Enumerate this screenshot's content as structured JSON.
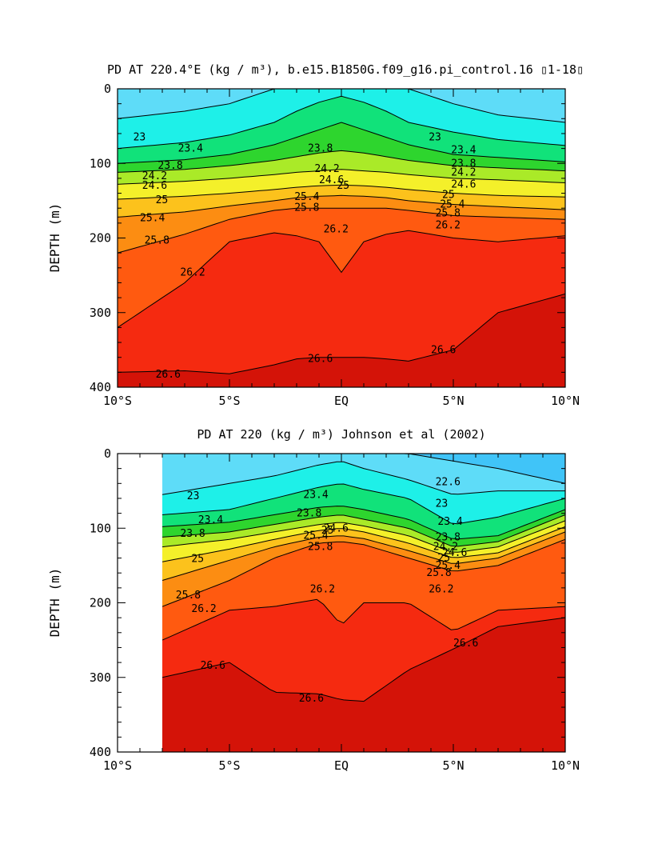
{
  "chart_data": [
    {
      "type": "contour",
      "title": "PD AT 220.4°E (kg / m³), b.e15.B1850G.f09_g16.pi_control.16 ▯1-18▯",
      "ylabel": "DEPTH (m)",
      "xticks": [
        "10°S",
        "5°S",
        "EQ",
        "5°N",
        "10°N"
      ],
      "yticks": [
        "0",
        "100",
        "200",
        "300",
        "400"
      ],
      "xlim": [
        -10,
        10
      ],
      "ylim": [
        400,
        0
      ],
      "data_x_start": -10,
      "contour_levels": [
        21.0,
        21.4,
        21.8,
        22.2,
        22.6,
        23.0,
        23.4,
        23.8,
        24.2,
        24.6,
        25.0,
        25.4,
        25.8,
        26.2,
        26.6
      ],
      "isopycnals": [
        {
          "level": 23.0,
          "x": [
            -10,
            -7,
            -5,
            -3,
            -2,
            -1,
            0,
            1,
            2,
            3,
            5,
            7,
            10
          ],
          "depth": [
            40,
            30,
            20,
            0,
            0,
            0,
            0,
            0,
            0,
            0,
            20,
            35,
            45
          ]
        },
        {
          "level": 23.4,
          "x": [
            -10,
            -7,
            -5,
            -3,
            -2,
            -1,
            0,
            1,
            2,
            3,
            5,
            7,
            10
          ],
          "depth": [
            80,
            72,
            62,
            45,
            30,
            18,
            10,
            18,
            30,
            45,
            58,
            68,
            76
          ]
        },
        {
          "level": 23.8,
          "x": [
            -10,
            -7,
            -5,
            -3,
            -2,
            -1,
            0,
            1,
            2,
            3,
            5,
            7,
            10
          ],
          "depth": [
            100,
            95,
            88,
            75,
            65,
            55,
            45,
            55,
            65,
            75,
            88,
            92,
            98
          ]
        },
        {
          "level": 24.2,
          "x": [
            -10,
            -7,
            -5,
            -3,
            -2,
            -1,
            0,
            1,
            2,
            3,
            5,
            7,
            10
          ],
          "depth": [
            112,
            108,
            103,
            96,
            91,
            86,
            83,
            86,
            91,
            96,
            103,
            106,
            110
          ]
        },
        {
          "level": 24.6,
          "x": [
            -10,
            -7,
            -5,
            -3,
            -2,
            -1,
            0,
            1,
            2,
            3,
            5,
            7,
            10
          ],
          "depth": [
            128,
            124,
            120,
            115,
            112,
            110,
            108,
            110,
            112,
            115,
            120,
            122,
            126
          ]
        },
        {
          "level": 25.0,
          "x": [
            -10,
            -7,
            -5,
            -3,
            -2,
            -1,
            0,
            1,
            2,
            3,
            5,
            7,
            10
          ],
          "depth": [
            148,
            144,
            140,
            135,
            132,
            130,
            129,
            130,
            132,
            135,
            140,
            143,
            145
          ]
        },
        {
          "level": 25.4,
          "x": [
            -10,
            -7,
            -5,
            -3,
            -2,
            -1,
            0,
            1,
            2,
            3,
            5,
            7,
            10
          ],
          "depth": [
            172,
            165,
            157,
            150,
            146,
            144,
            143,
            144,
            146,
            150,
            155,
            158,
            162
          ]
        },
        {
          "level": 25.8,
          "x": [
            -10,
            -7,
            -5,
            -3,
            -2,
            -1,
            0,
            1,
            2,
            3,
            5,
            7,
            10
          ],
          "depth": [
            220,
            195,
            175,
            163,
            160,
            160,
            160,
            160,
            160,
            163,
            170,
            172,
            175
          ]
        },
        {
          "level": 26.2,
          "x": [
            -10,
            -7,
            -5,
            -3,
            -2,
            -1,
            0,
            1,
            2,
            3,
            5,
            7,
            10
          ],
          "depth": [
            320,
            260,
            205,
            193,
            197,
            205,
            246,
            205,
            195,
            190,
            200,
            205,
            197
          ]
        },
        {
          "level": 26.6,
          "x": [
            -10,
            -7,
            -5,
            -3,
            -2,
            -1,
            0,
            1,
            2,
            3,
            5,
            7,
            10
          ],
          "depth": [
            380,
            378,
            382,
            370,
            362,
            360,
            360,
            360,
            362,
            365,
            350,
            300,
            275
          ]
        }
      ],
      "contour_labels": [
        {
          "text": "23",
          "x": -9.3,
          "y": 65
        },
        {
          "text": "23.4",
          "x": -7.3,
          "y": 80
        },
        {
          "text": "23.8",
          "x": -8.2,
          "y": 103
        },
        {
          "text": "24.2",
          "x": -8.9,
          "y": 117
        },
        {
          "text": "24.6",
          "x": -8.9,
          "y": 130
        },
        {
          "text": "25",
          "x": -8.3,
          "y": 149
        },
        {
          "text": "25.4",
          "x": -9.0,
          "y": 173
        },
        {
          "text": "25.8",
          "x": -8.8,
          "y": 203
        },
        {
          "text": "26.2",
          "x": -7.2,
          "y": 246
        },
        {
          "text": "26.6",
          "x": -8.3,
          "y": 383
        },
        {
          "text": "23.8",
          "x": -1.5,
          "y": 80
        },
        {
          "text": "24.2",
          "x": -1.2,
          "y": 107
        },
        {
          "text": "24.6",
          "x": -1.0,
          "y": 122
        },
        {
          "text": "25",
          "x": -0.2,
          "y": 130
        },
        {
          "text": "25.4",
          "x": -2.1,
          "y": 145
        },
        {
          "text": "25.8",
          "x": -2.1,
          "y": 159
        },
        {
          "text": "26.2",
          "x": -0.8,
          "y": 188
        },
        {
          "text": "26.6",
          "x": -1.5,
          "y": 362
        },
        {
          "text": "23",
          "x": 3.9,
          "y": 65
        },
        {
          "text": "23.4",
          "x": 4.9,
          "y": 82
        },
        {
          "text": "23.8",
          "x": 4.9,
          "y": 100
        },
        {
          "text": "24.2",
          "x": 4.9,
          "y": 112
        },
        {
          "text": "24.6",
          "x": 4.9,
          "y": 128
        },
        {
          "text": "25",
          "x": 4.5,
          "y": 142
        },
        {
          "text": "25.4",
          "x": 4.4,
          "y": 155
        },
        {
          "text": "25.8",
          "x": 4.2,
          "y": 167
        },
        {
          "text": "26.2",
          "x": 4.2,
          "y": 183
        },
        {
          "text": "26.6",
          "x": 4.0,
          "y": 350
        }
      ]
    },
    {
      "type": "contour",
      "title": "PD AT 220 (kg / m³) Johnson et al (2002)",
      "ylabel": "DEPTH (m)",
      "xticks": [
        "10°S",
        "5°S",
        "EQ",
        "5°N",
        "10°N"
      ],
      "yticks": [
        "0",
        "100",
        "200",
        "300",
        "400"
      ],
      "xlim": [
        -10,
        10
      ],
      "ylim": [
        400,
        0
      ],
      "data_x_start": -8,
      "contour_levels": [
        21.0,
        21.4,
        21.8,
        22.2,
        22.6,
        23.0,
        23.4,
        23.8,
        24.2,
        24.6,
        25.0,
        25.4,
        25.8,
        26.2,
        26.6
      ],
      "isopycnals": [
        {
          "level": 22.6,
          "x": [
            -8,
            -5,
            -3,
            -1,
            0,
            1,
            3,
            5,
            7,
            10
          ],
          "depth": [
            0,
            0,
            0,
            0,
            0,
            0,
            0,
            10,
            20,
            40
          ]
        },
        {
          "level": 23.0,
          "x": [
            -8,
            -5,
            -3,
            -1,
            0,
            1,
            3,
            5,
            7,
            10
          ],
          "depth": [
            55,
            40,
            30,
            15,
            10,
            20,
            35,
            55,
            50,
            50
          ]
        },
        {
          "level": 23.4,
          "x": [
            -8,
            -5,
            -3,
            -1,
            0,
            1,
            3,
            5,
            7,
            10
          ],
          "depth": [
            82,
            75,
            60,
            45,
            40,
            48,
            60,
            95,
            85,
            60
          ]
        },
        {
          "level": 23.8,
          "x": [
            -8,
            -5,
            -3,
            -1,
            0,
            1,
            3,
            5,
            7,
            10
          ],
          "depth": [
            98,
            92,
            82,
            72,
            70,
            75,
            88,
            115,
            110,
            75
          ]
        },
        {
          "level": 24.2,
          "x": [
            -8,
            -5,
            -3,
            -1,
            0,
            1,
            3,
            5,
            7,
            10
          ],
          "depth": [
            112,
            105,
            95,
            85,
            82,
            88,
            100,
            125,
            118,
            82
          ]
        },
        {
          "level": 24.6,
          "x": [
            -8,
            -5,
            -3,
            -1,
            0,
            1,
            3,
            5,
            7,
            10
          ],
          "depth": [
            125,
            115,
            105,
            95,
            92,
            97,
            110,
            133,
            125,
            90
          ]
        },
        {
          "level": 25.0,
          "x": [
            -8,
            -5,
            -3,
            -1,
            0,
            1,
            3,
            5,
            7,
            10
          ],
          "depth": [
            145,
            128,
            115,
            103,
            100,
            105,
            120,
            140,
            133,
            98
          ]
        },
        {
          "level": 25.4,
          "x": [
            -8,
            -5,
            -3,
            -1,
            0,
            1,
            3,
            5,
            7,
            10
          ],
          "depth": [
            170,
            143,
            125,
            112,
            110,
            114,
            130,
            148,
            140,
            105
          ]
        },
        {
          "level": 25.8,
          "x": [
            -8,
            -5,
            -3,
            -1,
            0,
            1,
            3,
            5,
            7,
            10
          ],
          "depth": [
            205,
            170,
            140,
            120,
            118,
            122,
            140,
            158,
            150,
            115
          ]
        },
        {
          "level": 26.2,
          "x": [
            -8,
            -5,
            -3,
            -1,
            0,
            1,
            3,
            5,
            7,
            10
          ],
          "depth": [
            250,
            210,
            205,
            195,
            230,
            200,
            200,
            238,
            210,
            205
          ]
        },
        {
          "level": 26.6,
          "x": [
            -8,
            -5,
            -3,
            -1,
            0,
            1,
            3,
            5,
            7,
            10
          ],
          "depth": [
            300,
            280,
            320,
            322,
            330,
            332,
            290,
            262,
            232,
            220
          ]
        }
      ],
      "contour_labels": [
        {
          "text": "23",
          "x": -6.9,
          "y": 57
        },
        {
          "text": "23.4",
          "x": -6.4,
          "y": 89
        },
        {
          "text": "23.8",
          "x": -7.2,
          "y": 107
        },
        {
          "text": "25",
          "x": -6.7,
          "y": 141
        },
        {
          "text": "25.8",
          "x": -7.4,
          "y": 190
        },
        {
          "text": "26.2",
          "x": -6.7,
          "y": 208
        },
        {
          "text": "26.6",
          "x": -6.3,
          "y": 284
        },
        {
          "text": "23.4",
          "x": -1.7,
          "y": 55
        },
        {
          "text": "23.8",
          "x": -2.0,
          "y": 80
        },
        {
          "text": "24.6",
          "x": -0.8,
          "y": 100
        },
        {
          "text": "25",
          "x": -0.9,
          "y": 103
        },
        {
          "text": "25.4",
          "x": -1.7,
          "y": 110
        },
        {
          "text": "25.8",
          "x": -1.5,
          "y": 125
        },
        {
          "text": "26.2",
          "x": -1.4,
          "y": 182
        },
        {
          "text": "26.6",
          "x": -1.9,
          "y": 328
        },
        {
          "text": "22.6",
          "x": 4.2,
          "y": 38
        },
        {
          "text": "23",
          "x": 4.2,
          "y": 67
        },
        {
          "text": "23.4",
          "x": 4.3,
          "y": 91
        },
        {
          "text": "23.8",
          "x": 4.2,
          "y": 112
        },
        {
          "text": "24.2",
          "x": 4.1,
          "y": 125
        },
        {
          "text": "24.6",
          "x": 4.5,
          "y": 133
        },
        {
          "text": "25",
          "x": 4.3,
          "y": 140
        },
        {
          "text": "25.4",
          "x": 4.2,
          "y": 150
        },
        {
          "text": "25.8",
          "x": 3.8,
          "y": 160
        },
        {
          "text": "26.2",
          "x": 3.9,
          "y": 182
        },
        {
          "text": "26.6",
          "x": 5.0,
          "y": 254
        }
      ]
    }
  ],
  "colors": {
    "fill_levels": [
      "#1010ee",
      "#0d3cf0",
      "#1c6ef8",
      "#2ea4fb",
      "#40c4f8",
      "#5edcf8",
      "#1ef0e8",
      "#11e27a",
      "#2ed52e",
      "#aaea28",
      "#f4f02a",
      "#fcc21c",
      "#fc8d12",
      "#ff5a10",
      "#f52a10",
      "#d41308"
    ],
    "top_surface_level": [
      "#e8e8ff",
      "#d23ed8",
      "#8c1bf0"
    ],
    "missing": "#ffffff"
  }
}
